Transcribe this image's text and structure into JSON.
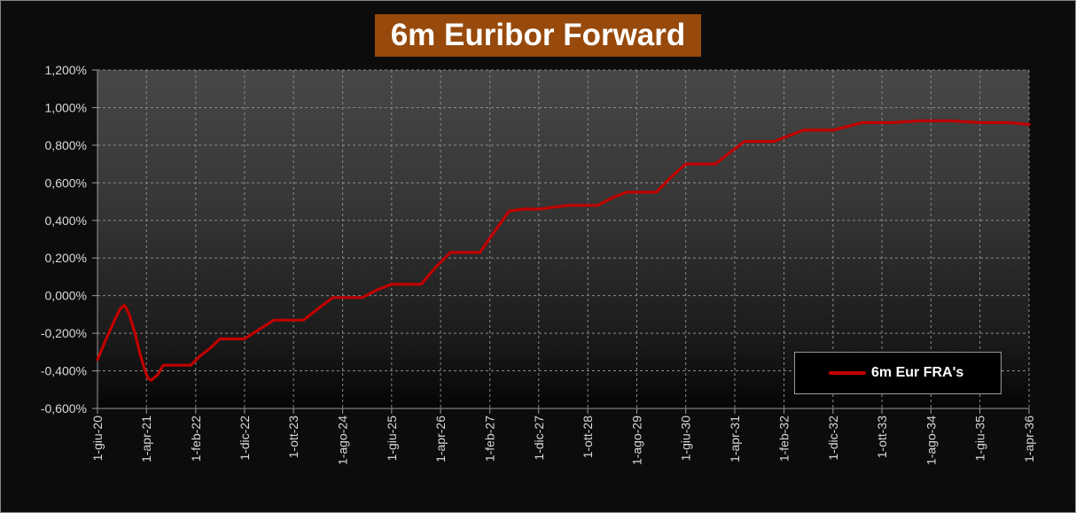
{
  "chart_data": {
    "type": "line",
    "title": "6m Euribor Forward",
    "xlabel": "",
    "ylabel": "",
    "ylim": [
      -0.6,
      1.2
    ],
    "y_ticks": [
      -0.6,
      -0.4,
      -0.2,
      0.0,
      0.2,
      0.4,
      0.6,
      0.8,
      1.0,
      1.2
    ],
    "y_tick_labels": [
      "-0,600%",
      "-0,400%",
      "-0,200%",
      "0,000%",
      "0,200%",
      "0,400%",
      "0,600%",
      "0,800%",
      "1,000%",
      "1,200%"
    ],
    "x_range": [
      "2020-06-01",
      "2036-04-01"
    ],
    "x_ticks": [
      "2020-06-01",
      "2021-04-01",
      "2022-02-01",
      "2022-12-01",
      "2023-10-01",
      "2024-08-01",
      "2025-06-01",
      "2026-04-01",
      "2027-02-01",
      "2027-12-01",
      "2028-10-01",
      "2029-08-01",
      "2030-06-01",
      "2031-04-01",
      "2032-02-01",
      "2032-12-01",
      "2033-10-01",
      "2034-08-01",
      "2035-06-01",
      "2036-04-01"
    ],
    "x_tick_labels": [
      "1-giu-20",
      "1-apr-21",
      "1-feb-22",
      "1-dic-22",
      "1-ott-23",
      "1-ago-24",
      "1-giu-25",
      "1-apr-26",
      "1-feb-27",
      "1-dic-27",
      "1-ott-28",
      "1-ago-29",
      "1-giu-30",
      "1-apr-31",
      "1-feb-32",
      "1-dic-32",
      "1-ott-33",
      "1-ago-34",
      "1-giu-35",
      "1-apr-36"
    ],
    "grid": true,
    "legend_position": "bottom-right",
    "series": [
      {
        "name": "6m Eur FRA's",
        "color": "#c00000",
        "points": [
          [
            "2020-06-01",
            -0.34
          ],
          [
            "2020-07-15",
            -0.25
          ],
          [
            "2020-09-15",
            -0.13
          ],
          [
            "2020-10-20",
            -0.07
          ],
          [
            "2020-11-15",
            -0.05
          ],
          [
            "2020-12-15",
            -0.1
          ],
          [
            "2021-01-20",
            -0.2
          ],
          [
            "2021-02-20",
            -0.31
          ],
          [
            "2021-03-20",
            -0.39
          ],
          [
            "2021-04-10",
            -0.44
          ],
          [
            "2021-05-01",
            -0.45
          ],
          [
            "2021-06-10",
            -0.42
          ],
          [
            "2021-07-15",
            -0.37
          ],
          [
            "2021-09-15",
            -0.37
          ],
          [
            "2021-11-15",
            -0.37
          ],
          [
            "2022-01-01",
            -0.37
          ],
          [
            "2022-03-01",
            -0.32
          ],
          [
            "2022-05-01",
            -0.28
          ],
          [
            "2022-07-01",
            -0.23
          ],
          [
            "2022-09-01",
            -0.23
          ],
          [
            "2022-12-01",
            -0.23
          ],
          [
            "2023-03-01",
            -0.18
          ],
          [
            "2023-06-01",
            -0.13
          ],
          [
            "2023-09-01",
            -0.13
          ],
          [
            "2023-12-01",
            -0.13
          ],
          [
            "2024-03-01",
            -0.07
          ],
          [
            "2024-06-01",
            -0.01
          ],
          [
            "2024-09-01",
            -0.01
          ],
          [
            "2024-12-01",
            -0.01
          ],
          [
            "2025-03-01",
            0.03
          ],
          [
            "2025-06-01",
            0.06
          ],
          [
            "2025-09-01",
            0.06
          ],
          [
            "2025-12-01",
            0.06
          ],
          [
            "2026-03-01",
            0.15
          ],
          [
            "2026-06-01",
            0.23
          ],
          [
            "2026-09-01",
            0.23
          ],
          [
            "2026-12-01",
            0.23
          ],
          [
            "2027-03-01",
            0.34
          ],
          [
            "2027-06-01",
            0.45
          ],
          [
            "2027-09-01",
            0.46
          ],
          [
            "2027-12-01",
            0.46
          ],
          [
            "2028-03-01",
            0.47
          ],
          [
            "2028-06-01",
            0.48
          ],
          [
            "2028-09-01",
            0.48
          ],
          [
            "2028-12-01",
            0.48
          ],
          [
            "2029-03-01",
            0.52
          ],
          [
            "2029-06-01",
            0.55
          ],
          [
            "2029-09-01",
            0.55
          ],
          [
            "2029-12-01",
            0.55
          ],
          [
            "2030-03-01",
            0.63
          ],
          [
            "2030-06-01",
            0.7
          ],
          [
            "2030-09-01",
            0.7
          ],
          [
            "2030-12-01",
            0.7
          ],
          [
            "2031-03-01",
            0.76
          ],
          [
            "2031-06-01",
            0.82
          ],
          [
            "2031-09-01",
            0.82
          ],
          [
            "2031-12-01",
            0.82
          ],
          [
            "2032-03-01",
            0.85
          ],
          [
            "2032-06-01",
            0.88
          ],
          [
            "2032-09-01",
            0.88
          ],
          [
            "2032-12-01",
            0.88
          ],
          [
            "2033-03-01",
            0.9
          ],
          [
            "2033-06-01",
            0.92
          ],
          [
            "2033-12-01",
            0.92
          ],
          [
            "2034-06-01",
            0.93
          ],
          [
            "2034-12-01",
            0.93
          ],
          [
            "2035-06-01",
            0.92
          ],
          [
            "2035-12-01",
            0.92
          ],
          [
            "2036-04-01",
            0.91
          ]
        ]
      }
    ]
  },
  "colors": {
    "title_background": "#974a0c",
    "series_line": "#c00000",
    "page_background": "#0c0c0c"
  }
}
